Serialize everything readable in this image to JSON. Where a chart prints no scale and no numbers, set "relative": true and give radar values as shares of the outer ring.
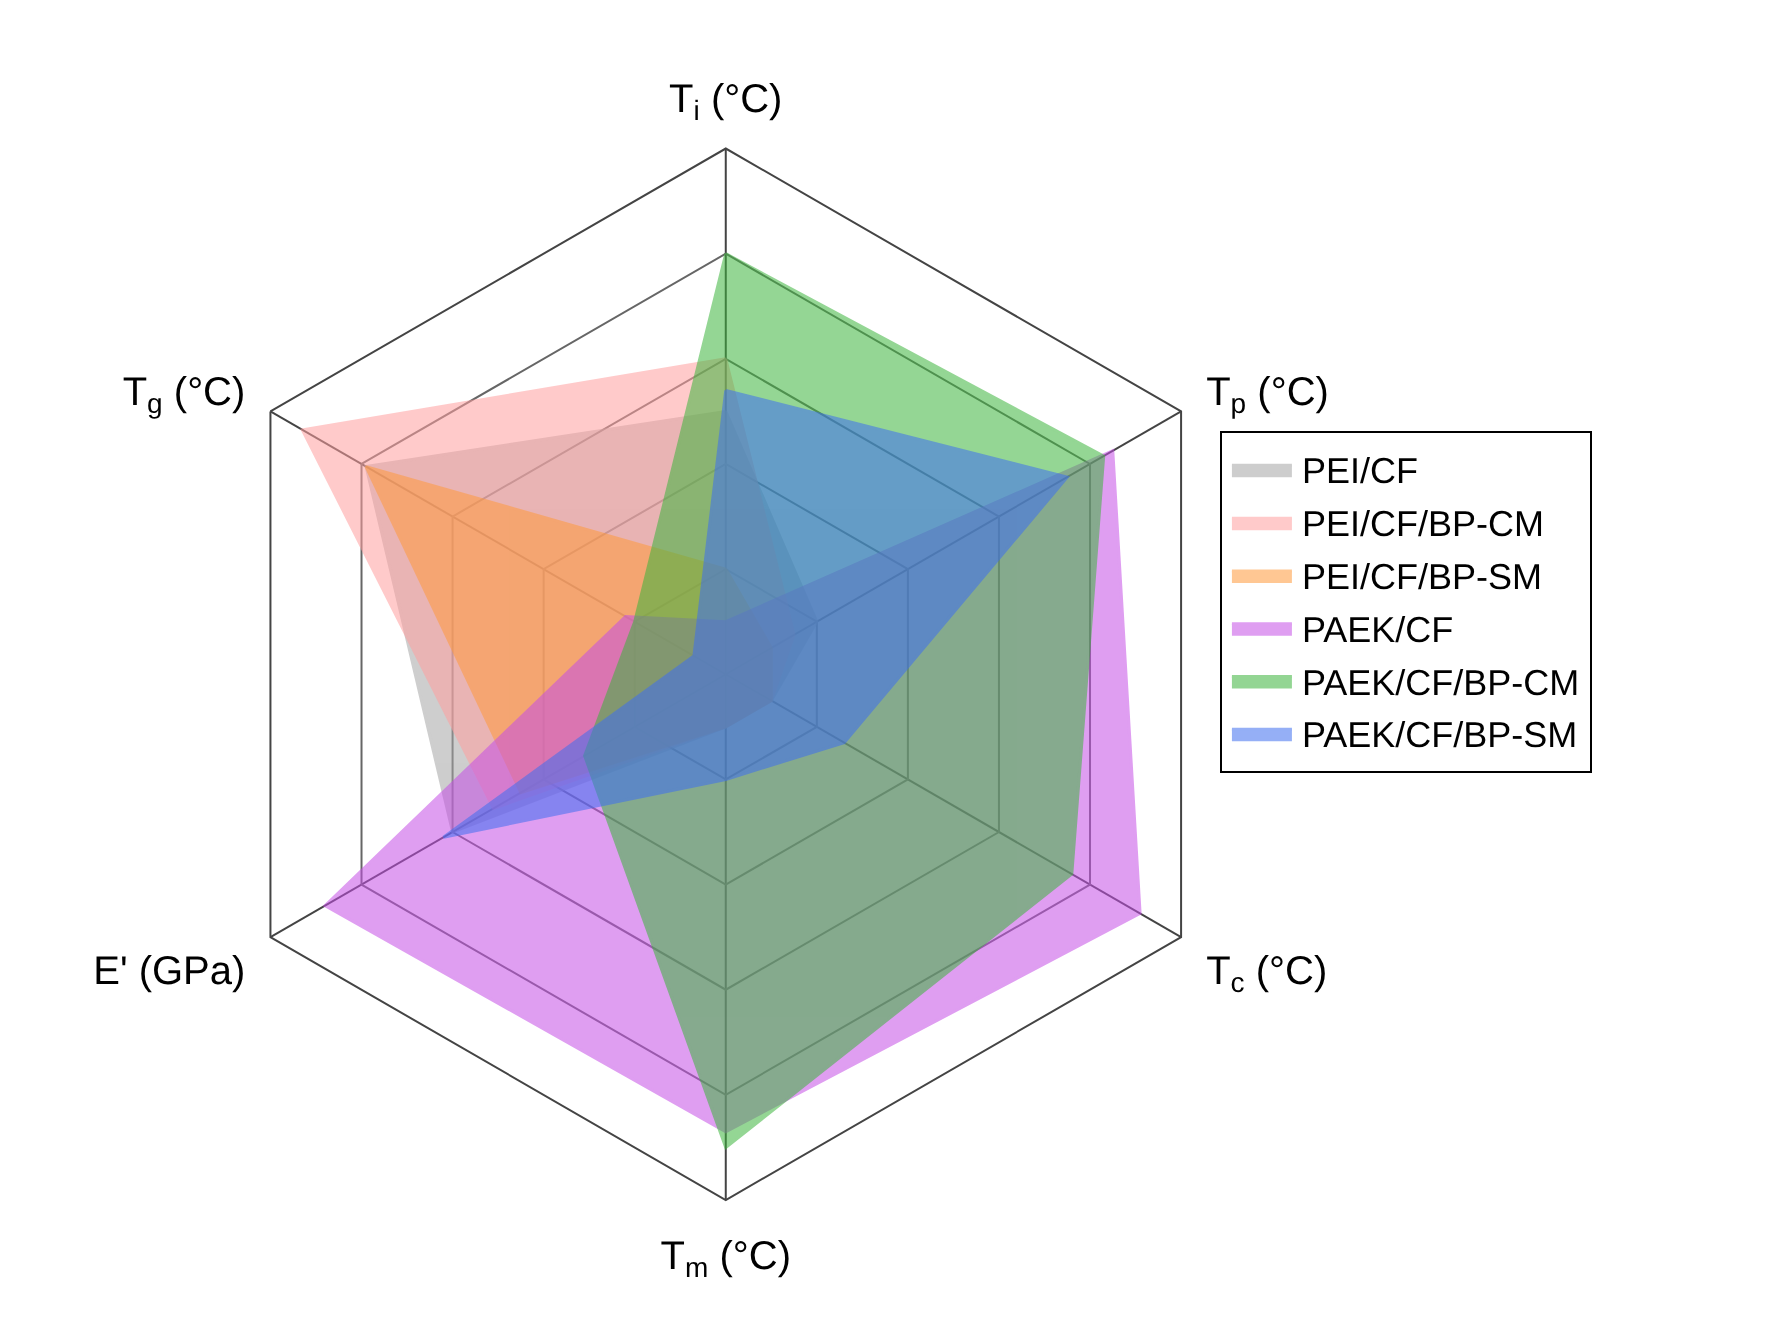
{
  "chart_data": {
    "type": "radar",
    "relative": true,
    "grid": true,
    "legend": "right",
    "marker": "none",
    "categories": [
      "T$_{i}$ (°C)",
      "T$_{p}$ (°C)",
      "T$_{c}$ (°C)",
      "T$_{m}$ (°C)",
      "E' (GPa)",
      "T$_{g}$ (°C)"
    ],
    "series": [
      {
        "name": "PEI/CF",
        "color": "#a6a6a6",
        "values": [
          0.5,
          0.2,
          0.1,
          0.1,
          0.6,
          0.79
        ]
      },
      {
        "name": "PEI/CF/BP-CM",
        "color": "#ff9f9f",
        "values": [
          0.6,
          0.15,
          0.1,
          0.1,
          0.51,
          0.93
        ]
      },
      {
        "name": "PEI/CF/BP-SM",
        "color": "#ff9a3c",
        "values": [
          0.2,
          0.1,
          0.1,
          0.1,
          0.45,
          0.79
        ]
      },
      {
        "name": "PAEK/CF",
        "color": "#c54fe6",
        "values": [
          0.1,
          0.85,
          0.91,
          0.87,
          0.88,
          0.22
        ]
      },
      {
        "name": "PAEK/CF/BP-CM",
        "color": "#3cb43c",
        "values": [
          0.8,
          0.83,
          0.76,
          0.9,
          0.31,
          0.2
        ]
      },
      {
        "name": "PAEK/CF/BP-SM",
        "color": "#3f6ff0",
        "values": [
          0.54,
          0.75,
          0.26,
          0.2,
          0.62,
          0.07
        ]
      }
    ]
  }
}
